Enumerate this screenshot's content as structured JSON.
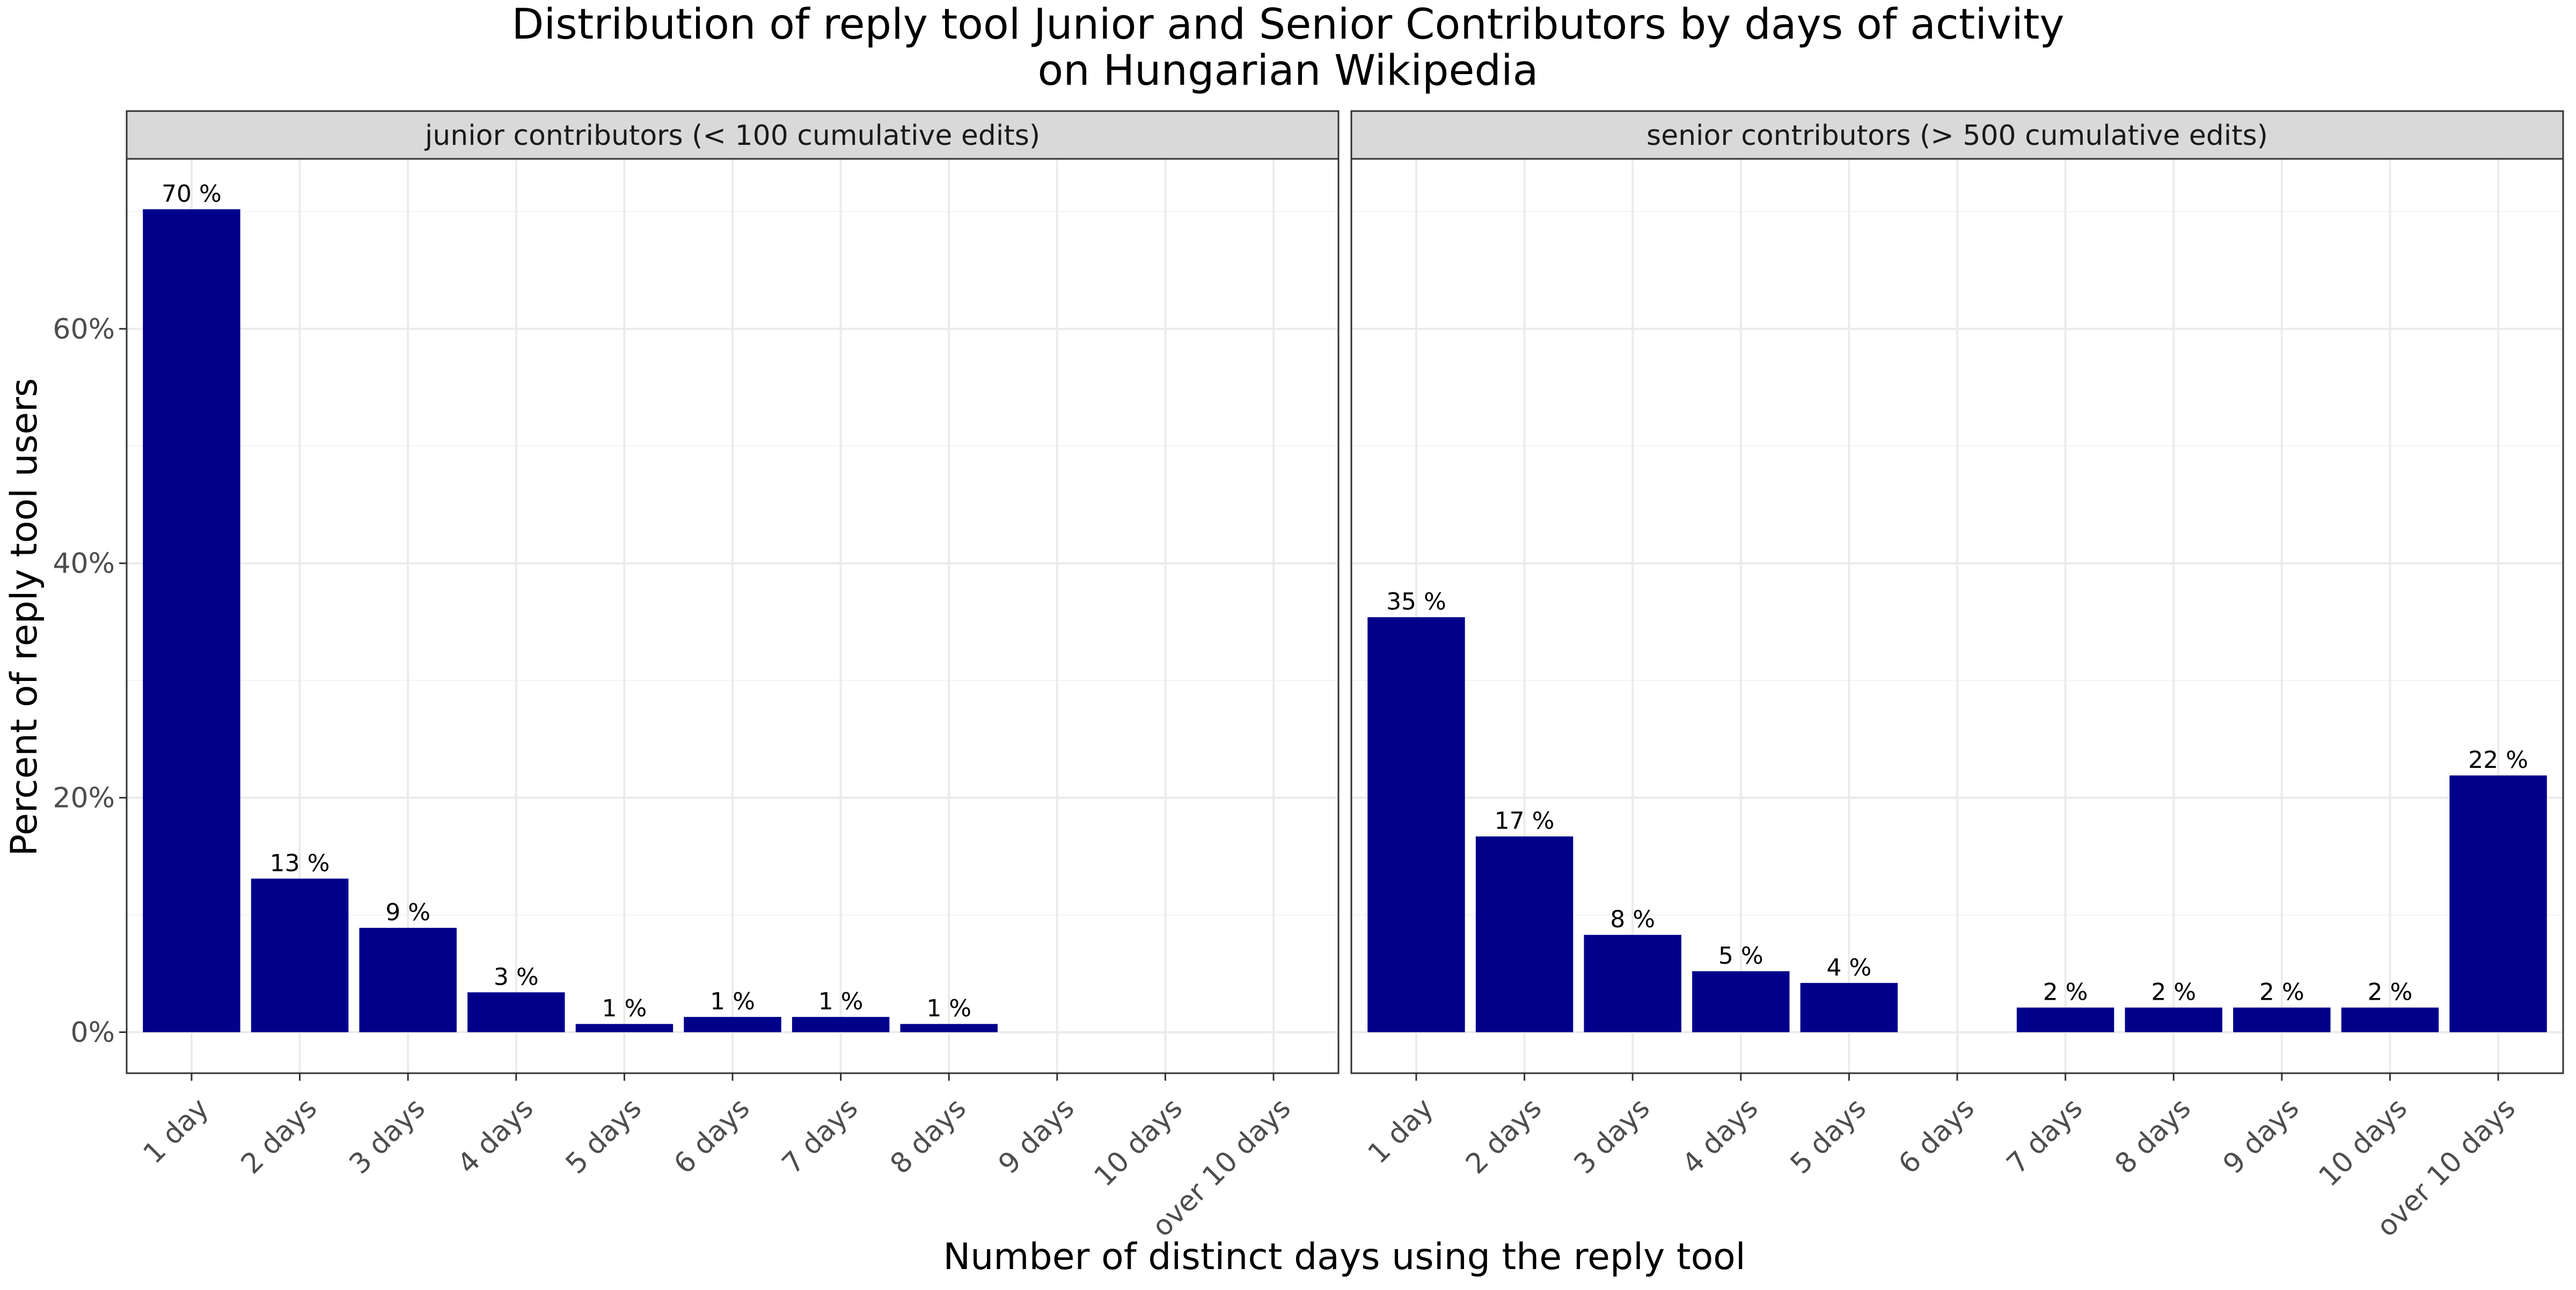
{
  "chart_data": {
    "type": "bar",
    "title": "Distribution of reply tool Junior and Senior Contributors by days of activity on Hungarian Wikipedia",
    "title_lines": [
      "Distribution of reply tool Junior and Senior Contributors by days of activity",
      "on Hungarian Wikipedia"
    ],
    "xlabel": "Number of distinct days using the reply tool",
    "ylabel": "Percent of reply tool users",
    "categories": [
      "1 day",
      "2 days",
      "3 days",
      "4 days",
      "5 days",
      "6 days",
      "7 days",
      "8 days",
      "9 days",
      "10 days",
      "over 10 days"
    ],
    "y_ticks": [
      0,
      20,
      40,
      60
    ],
    "y_tick_labels": [
      "0%",
      "20%",
      "40%",
      "60%"
    ],
    "ylim": [
      -3.5,
      74.5
    ],
    "grid": true,
    "bar_color": "#00008B",
    "panels": [
      {
        "label": "junior contributors (< 100 cumulative edits)",
        "values": [
          70.2,
          13.1,
          8.9,
          3.4,
          0.7,
          1.3,
          1.3,
          0.7,
          null,
          null,
          null
        ],
        "data_labels": [
          "70 %",
          "13 %",
          "9 %",
          "3 %",
          "1 %",
          "1 %",
          "1 %",
          "1 %",
          "",
          "",
          ""
        ]
      },
      {
        "label": "senior contributors (> 500 cumulative edits)",
        "values": [
          35.4,
          16.7,
          8.3,
          5.2,
          4.2,
          null,
          2.1,
          2.1,
          2.1,
          2.1,
          21.9
        ],
        "data_labels": [
          "35 %",
          "17 %",
          "8 %",
          "5 %",
          "4 %",
          "",
          "2 %",
          "2 %",
          "2 %",
          "2 %",
          "22 %"
        ]
      }
    ]
  }
}
